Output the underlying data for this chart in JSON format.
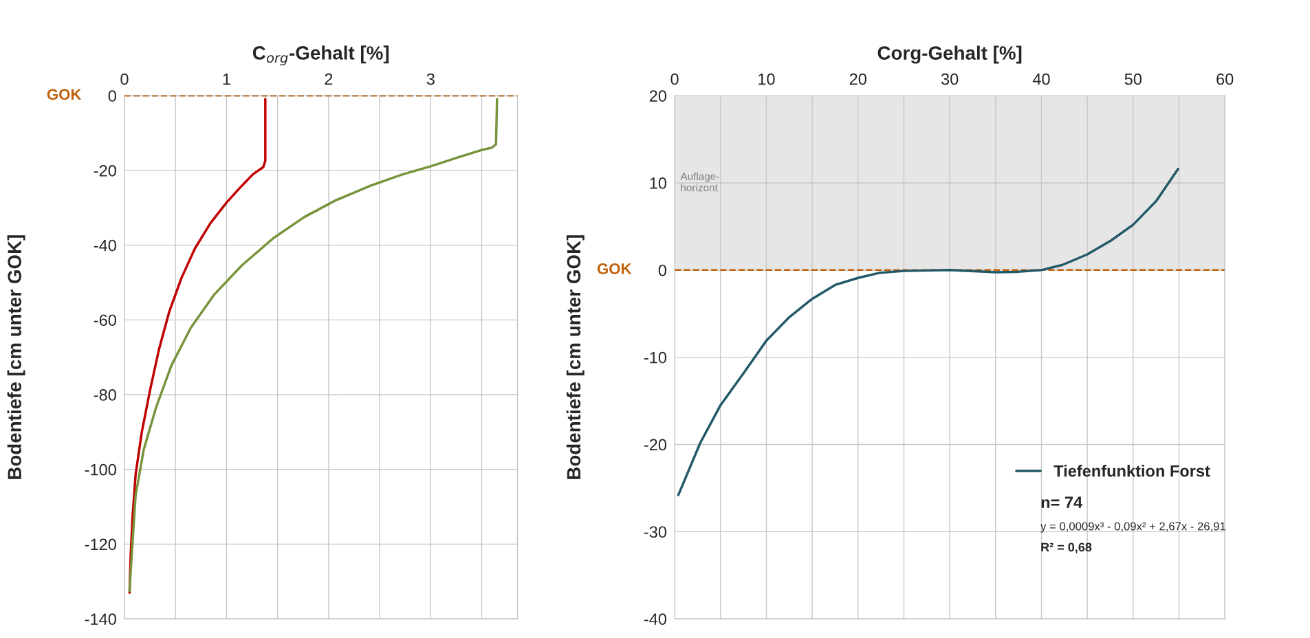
{
  "chart_data": [
    {
      "type": "line",
      "xlabel": "C$_{org}$-Gehalt [%]",
      "ylabel": "Bodentiefe [cm unter GOK]",
      "xlim": [
        0,
        3.85
      ],
      "ylim": [
        -140,
        0
      ],
      "xticks": [
        0,
        {
          "value": 0.5,
          "label": null
        },
        1,
        {
          "value": 1.5,
          "label": null
        },
        2,
        {
          "value": 2.5,
          "label": null
        },
        3,
        {
          "value": 3.5,
          "label": null
        }
      ],
      "yticks": [
        -140,
        -120,
        -100,
        -80,
        -60,
        -40,
        -20,
        0
      ],
      "grid": true,
      "legend": false,
      "ref_lines": [
        {
          "axis": "y",
          "value": 0,
          "label": "GOK",
          "color": "#c0600a",
          "line_style": "dashed"
        }
      ],
      "series": [
        {
          "color": "#c00000",
          "x": [
            1.38,
            1.38,
            1.36,
            1.26,
            1.15,
            1.0,
            0.84,
            0.69,
            0.56,
            0.44,
            0.34,
            0.25,
            0.17,
            0.11,
            0.08,
            0.06,
            0.05
          ],
          "values": [
            -0.9,
            -17.4,
            -19.1,
            -21,
            -24.1,
            -28.6,
            -34.2,
            -40.9,
            -48.7,
            -57.7,
            -67.7,
            -78.9,
            -90,
            -101.2,
            -112.4,
            -123.6,
            -133
          ]
        },
        {
          "color": "#77933c",
          "x": [
            3.65,
            3.64,
            3.6,
            3.49,
            3.29,
            3.0,
            2.72,
            2.41,
            2.07,
            1.76,
            1.46,
            1.15,
            0.88,
            0.65,
            0.46,
            0.31,
            0.19,
            0.11,
            0.08,
            0.05
          ],
          "values": [
            -0.9,
            -13,
            -13.9,
            -14.6,
            -16.3,
            -18.9,
            -21.1,
            -24.1,
            -28,
            -32.5,
            -38.1,
            -45.4,
            -53.2,
            -62.1,
            -72.2,
            -83.4,
            -94.6,
            -106.8,
            -119.1,
            -132.5
          ]
        }
      ]
    },
    {
      "type": "line",
      "xlabel": "Corg-Gehalt [%]",
      "ylabel": "Bodentiefe [cm unter GOK]",
      "xlim": [
        0,
        60
      ],
      "ylim": [
        -40,
        20
      ],
      "xticks": [
        0,
        {
          "value": 5,
          "label": null
        },
        10,
        {
          "value": 15,
          "label": null
        },
        20,
        {
          "value": 25,
          "label": null
        },
        30,
        {
          "value": 35,
          "label": null
        },
        40,
        {
          "value": 45,
          "label": null
        },
        50,
        {
          "value": 55,
          "label": null
        },
        60
      ],
      "yticks": [
        -40,
        -30,
        -20,
        -10,
        0,
        10,
        20
      ],
      "grid": true,
      "legend": "right",
      "ref_lines": [
        {
          "axis": "y",
          "value": 0,
          "label": "GOK",
          "color": "#c0600a",
          "line_style": "dashed"
        }
      ],
      "bands": [
        {
          "axis": "y",
          "from": 0,
          "to": 20,
          "label": "Auflage-\nhorizont",
          "color": "#e6e6e6"
        }
      ],
      "annotations": [
        "n= 74",
        "y = 0,0009x³ - 0,09x² + 2,67x - 26,91",
        "R² = 0,68"
      ],
      "series": [
        {
          "name": "Tiefenfunktion Forst",
          "color": "#215968",
          "x": [
            0.4,
            2.8,
            5,
            7.8,
            10,
            12.5,
            15,
            17.5,
            20,
            22.4,
            25,
            30,
            35,
            37.4,
            40,
            42.3,
            45,
            47.6,
            50,
            52.5,
            54.9
          ],
          "values": [
            -25.8,
            -19.8,
            -15.5,
            -11.4,
            -8.1,
            -5.4,
            -3.3,
            -1.7,
            -0.9,
            -0.3,
            -0.1,
            0,
            -0.25,
            -0.2,
            0,
            0.6,
            1.8,
            3.4,
            5.2,
            7.9,
            11.6
          ]
        }
      ]
    }
  ]
}
